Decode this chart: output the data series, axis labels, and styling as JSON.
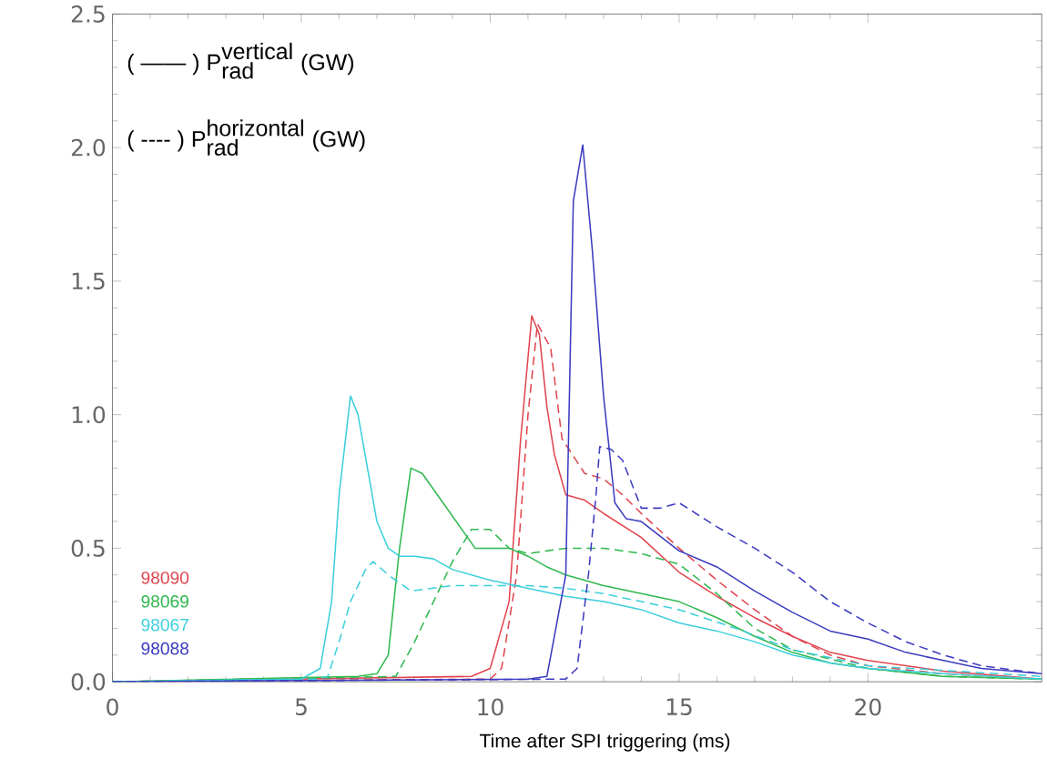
{
  "chart_data": {
    "type": "line",
    "xlabel": "Time after SPI triggering (ms)",
    "annotations": [
      "\\mbox{( —— ) P}_{\\mbox{rad}}^{\\mbox{vertical}}\\mbox{ (GW)}",
      "\\mbox{( ---- ) P}_{\\mbox{rad}}^{\\mbox{horizontal}}\\mbox{ (GW)}"
    ],
    "xlim": [
      0,
      24.6
    ],
    "ylim": [
      0,
      2.5
    ],
    "xticks": [
      0,
      5,
      10,
      15,
      20
    ],
    "yticks": [
      {
        "value": 0,
        "label": "0.0"
      },
      0.5,
      {
        "value": 1,
        "label": "1.0"
      },
      1.5,
      {
        "value": 2,
        "label": "2.0"
      },
      2.5
    ],
    "legend": "bottom left",
    "grid": false,
    "marker": "none",
    "series": [
      {
        "name": "98090",
        "color": "#e0454f",
        "line_style": "solid",
        "x": [
          0,
          9.5,
          10,
          10.5,
          10.8,
          11.1,
          11.3,
          11.5,
          11.7,
          12,
          12.5,
          13,
          14,
          15,
          16,
          17,
          18,
          19,
          20,
          22,
          24.6
        ],
        "values": [
          0,
          0.02,
          0.05,
          0.3,
          0.9,
          1.37,
          1.3,
          1.03,
          0.85,
          0.7,
          0.68,
          0.63,
          0.54,
          0.41,
          0.32,
          0.24,
          0.17,
          0.11,
          0.08,
          0.04,
          0.01
        ]
      },
      {
        "color": "#e0454f",
        "line_style": "dashed",
        "x": [
          0,
          10,
          10.3,
          10.7,
          11,
          11.25,
          11.6,
          11.9,
          12.5,
          13,
          13.5,
          14,
          15,
          16,
          17,
          18,
          19,
          20,
          22,
          24.6
        ],
        "values": [
          0,
          0.01,
          0.05,
          0.4,
          1.0,
          1.34,
          1.25,
          0.91,
          0.78,
          0.76,
          0.7,
          0.63,
          0.5,
          0.38,
          0.27,
          0.17,
          0.1,
          0.06,
          0.03,
          0.01
        ]
      },
      {
        "name": "98069",
        "color": "#2fb84f",
        "line_style": "solid",
        "x": [
          0,
          6.5,
          7,
          7.3,
          7.6,
          7.9,
          8.2,
          8.7,
          9.2,
          9.6,
          10,
          10.5,
          11,
          11.5,
          12,
          13,
          14,
          15,
          16,
          17,
          18,
          19,
          20,
          22,
          24.6
        ],
        "values": [
          0,
          0.02,
          0.03,
          0.1,
          0.5,
          0.8,
          0.78,
          0.68,
          0.58,
          0.5,
          0.5,
          0.5,
          0.47,
          0.43,
          0.4,
          0.36,
          0.33,
          0.3,
          0.24,
          0.17,
          0.11,
          0.07,
          0.05,
          0.02,
          0.01
        ]
      },
      {
        "color": "#2fb84f",
        "line_style": "dashed",
        "x": [
          0,
          7.5,
          8,
          8.5,
          9,
          9.5,
          10,
          10.5,
          11,
          12,
          13,
          14,
          15,
          16,
          17,
          18,
          20,
          22,
          24.6
        ],
        "values": [
          0,
          0.02,
          0.15,
          0.3,
          0.45,
          0.57,
          0.57,
          0.5,
          0.48,
          0.5,
          0.5,
          0.48,
          0.44,
          0.33,
          0.2,
          0.12,
          0.05,
          0.02,
          0.01
        ]
      },
      {
        "name": "98067",
        "color": "#3ccfdc",
        "line_style": "solid",
        "x": [
          0,
          5,
          5.5,
          5.8,
          6,
          6.3,
          6.5,
          7,
          7.3,
          7.6,
          8,
          8.5,
          9,
          10,
          11,
          12,
          13,
          14,
          15,
          16,
          17,
          18,
          19,
          20,
          22,
          24.6
        ],
        "values": [
          0,
          0.01,
          0.05,
          0.3,
          0.7,
          1.07,
          1.0,
          0.6,
          0.5,
          0.47,
          0.47,
          0.46,
          0.42,
          0.38,
          0.35,
          0.32,
          0.3,
          0.27,
          0.22,
          0.19,
          0.15,
          0.1,
          0.07,
          0.05,
          0.03,
          0.01
        ]
      },
      {
        "color": "#3ccfdc",
        "line_style": "dashed",
        "x": [
          0,
          5.4,
          5.7,
          6,
          6.3,
          6.7,
          6.9,
          7.3,
          7.9,
          9,
          10,
          11,
          12,
          13,
          14,
          15,
          16.5,
          18,
          20,
          24.6
        ],
        "values": [
          0,
          0.01,
          0.02,
          0.15,
          0.3,
          0.42,
          0.45,
          0.4,
          0.34,
          0.36,
          0.36,
          0.36,
          0.35,
          0.33,
          0.3,
          0.27,
          0.2,
          0.12,
          0.06,
          0.02
        ]
      },
      {
        "name": "98088",
        "color": "#3b3bc0",
        "line_style": "solid",
        "x": [
          0,
          11,
          11.5,
          12,
          12.2,
          12.45,
          12.7,
          13,
          13.3,
          13.6,
          14,
          15,
          16,
          17,
          18,
          19,
          20,
          21,
          22,
          23,
          24.6
        ],
        "values": [
          0,
          0.01,
          0.02,
          0.4,
          1.8,
          2.01,
          1.62,
          1.07,
          0.67,
          0.61,
          0.6,
          0.49,
          0.43,
          0.34,
          0.26,
          0.19,
          0.16,
          0.11,
          0.08,
          0.05,
          0.03
        ]
      },
      {
        "color": "#3b3bc0",
        "line_style": "dashed",
        "x": [
          0,
          12,
          12.3,
          12.6,
          12.8,
          12.9,
          13.2,
          13.5,
          14,
          14.5,
          15,
          16,
          17,
          18,
          19,
          20,
          21,
          22,
          23,
          24.6
        ],
        "values": [
          0,
          0.01,
          0.05,
          0.4,
          0.7,
          0.88,
          0.87,
          0.83,
          0.65,
          0.65,
          0.67,
          0.58,
          0.5,
          0.41,
          0.3,
          0.22,
          0.15,
          0.1,
          0.06,
          0.03
        ]
      }
    ]
  }
}
